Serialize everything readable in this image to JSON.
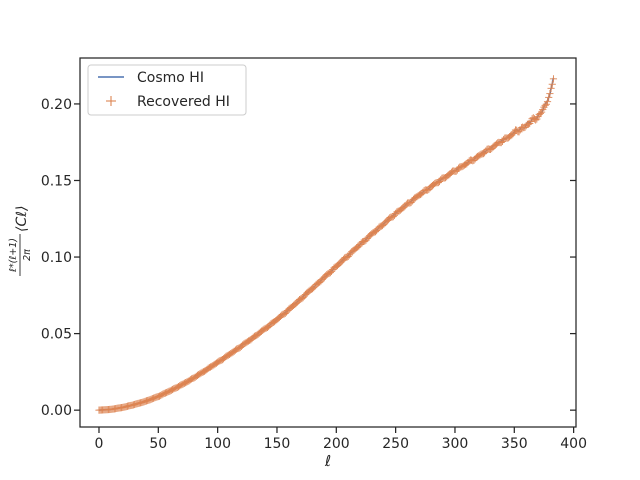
{
  "chart_data": {
    "type": "line",
    "title": "",
    "xlabel": "ℓ",
    "ylabel": "ℓ*(ℓ+1)/2π ⟨Cℓ⟩",
    "xlim": [
      -16,
      402
    ],
    "ylim": [
      -0.011,
      0.23
    ],
    "xticks": [
      "0",
      "50",
      "100",
      "150",
      "200",
      "250",
      "300",
      "350",
      "400"
    ],
    "yticks": [
      "0.00",
      "0.05",
      "0.10",
      "0.15",
      "0.20"
    ],
    "grid": false,
    "legend_position": "top-left",
    "anchors": {
      "x": [
        0,
        10,
        20,
        30,
        40,
        50,
        60,
        70,
        80,
        90,
        100,
        110,
        120,
        130,
        140,
        150,
        160,
        170,
        180,
        190,
        200,
        210,
        220,
        230,
        240,
        250,
        260,
        270,
        280,
        290,
        300,
        310,
        320,
        330,
        340,
        350,
        360,
        370,
        375,
        380,
        383
      ],
      "y": [
        0.0,
        0.0005,
        0.0018,
        0.0037,
        0.006,
        0.009,
        0.0127,
        0.0167,
        0.0212,
        0.0262,
        0.0313,
        0.0365,
        0.0419,
        0.0475,
        0.0533,
        0.0593,
        0.0658,
        0.0727,
        0.0798,
        0.0869,
        0.0941,
        0.1012,
        0.1083,
        0.1152,
        0.1219,
        0.1286,
        0.1348,
        0.1408,
        0.1462,
        0.1516,
        0.1566,
        0.1614,
        0.1662,
        0.1713,
        0.1762,
        0.1813,
        0.1862,
        0.1922,
        0.1975,
        0.2055,
        0.218
      ]
    },
    "series": [
      {
        "name": "Cosmo HI",
        "style": "line",
        "color": "#4c72b0"
      },
      {
        "name": "Recovered HI",
        "style": "plus-markers",
        "color": "#dd8452"
      }
    ]
  }
}
